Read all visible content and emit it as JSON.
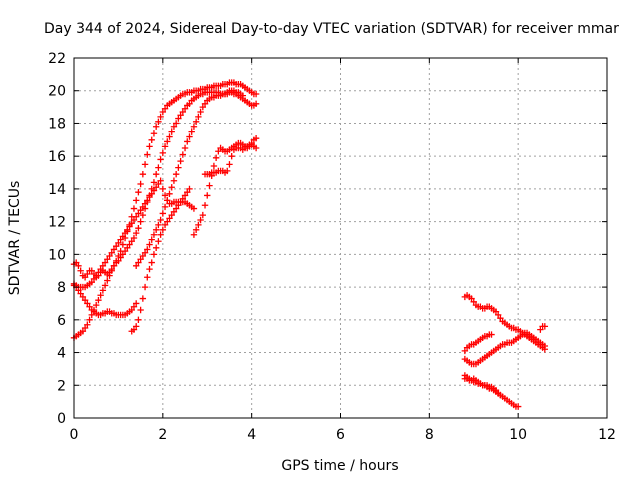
{
  "chart_data": {
    "type": "scatter",
    "title": "Day 344 of 2024, Sidereal Day-to-day VTEC variation (SDTVAR) for receiver mmar",
    "xlabel": "GPS time / hours",
    "ylabel": "SDTVAR / TECUs",
    "xlim": [
      0,
      12
    ],
    "ylim": [
      0,
      22
    ],
    "xticks": [
      0,
      2,
      4,
      6,
      8,
      10,
      12
    ],
    "yticks": [
      0,
      2,
      4,
      6,
      8,
      10,
      12,
      14,
      16,
      18,
      20,
      22
    ],
    "grid": true,
    "marker": "+",
    "color": "#ff0000",
    "series": [
      {
        "x": [
          0.0,
          0.05,
          0.1,
          0.15,
          0.2,
          0.25,
          0.3,
          0.35,
          0.4,
          0.45,
          0.5,
          0.55,
          0.6,
          0.65,
          0.7,
          0.75,
          0.8,
          0.85,
          0.9,
          0.95,
          1.0,
          1.05,
          1.1,
          1.15,
          1.2,
          1.25,
          1.3,
          1.35,
          1.4,
          1.45,
          1.5,
          1.55,
          1.6,
          1.65,
          1.7,
          1.75,
          1.8,
          1.85,
          1.9,
          1.95,
          2.0,
          2.05,
          2.1,
          2.15,
          2.2,
          2.25,
          2.3,
          2.35,
          2.4,
          2.45,
          2.5,
          2.55,
          2.6,
          2.65,
          2.7,
          2.75,
          2.8,
          2.85,
          2.9,
          2.95,
          3.0,
          3.05,
          3.1,
          3.15,
          3.2,
          3.25,
          3.3,
          3.35,
          3.4,
          3.45,
          3.5,
          3.55,
          3.6,
          3.65,
          3.7,
          3.75,
          3.8,
          3.85,
          3.9,
          3.95,
          4.0,
          4.05,
          4.1
        ],
        "y": [
          4.9,
          5.0,
          5.1,
          5.2,
          5.3,
          5.5,
          5.7,
          6.0,
          6.3,
          6.6,
          6.9,
          7.2,
          7.5,
          7.8,
          8.1,
          8.4,
          8.7,
          9.0,
          9.3,
          9.6,
          9.9,
          10.2,
          10.6,
          11.0,
          11.4,
          11.8,
          12.3,
          12.8,
          13.3,
          13.8,
          14.3,
          14.9,
          15.5,
          16.1,
          16.6,
          17.0,
          17.4,
          17.8,
          18.1,
          18.4,
          18.7,
          18.9,
          19.1,
          19.2,
          19.3,
          19.4,
          19.5,
          19.6,
          19.7,
          19.8,
          19.8,
          19.9,
          19.9,
          19.9,
          20.0,
          20.0,
          20.0,
          20.1,
          20.1,
          20.1,
          20.2,
          20.2,
          20.2,
          20.3,
          20.3,
          20.3,
          20.3,
          20.4,
          20.4,
          20.4,
          20.5,
          20.5,
          20.5,
          20.4,
          20.4,
          20.4,
          20.3,
          20.2,
          20.1,
          20.0,
          19.9,
          19.8,
          19.8
        ]
      },
      {
        "x": [
          0.0,
          0.05,
          0.1,
          0.15,
          0.2,
          0.25,
          0.3,
          0.35,
          0.4,
          0.45,
          0.5,
          0.55,
          0.6,
          0.65,
          0.7,
          0.75,
          0.8,
          0.85,
          0.9,
          0.95,
          1.0,
          1.05,
          1.1,
          1.15,
          1.2,
          1.25,
          1.3,
          1.35,
          1.4,
          1.45,
          1.5,
          1.55,
          1.6,
          1.65,
          1.7,
          1.75,
          1.8,
          1.85,
          1.9,
          1.95,
          2.0,
          2.05,
          2.1,
          2.15,
          2.2,
          2.25,
          2.3,
          2.35,
          2.4,
          2.45,
          2.5,
          2.55,
          2.6,
          2.65,
          2.7
        ],
        "y": [
          8.1,
          8.1,
          8.0,
          8.0,
          8.0,
          8.0,
          8.1,
          8.2,
          8.3,
          8.5,
          8.7,
          8.9,
          9.1,
          9.3,
          9.5,
          9.7,
          9.9,
          10.1,
          10.3,
          10.5,
          10.7,
          10.9,
          11.1,
          11.3,
          11.5,
          11.7,
          11.9,
          12.1,
          12.3,
          12.5,
          12.7,
          12.9,
          13.1,
          13.3,
          13.5,
          13.7,
          13.9,
          14.1,
          14.3,
          14.5,
          14.0,
          13.6,
          13.3,
          13.1,
          13.1,
          13.2,
          13.2,
          13.2,
          13.2,
          13.2,
          13.2,
          13.1,
          13.0,
          12.9,
          12.8
        ]
      },
      {
        "x": [
          0.0,
          0.05,
          0.1,
          0.15,
          0.2,
          0.25,
          0.3,
          0.35,
          0.4,
          0.45,
          0.5,
          0.55,
          0.6,
          0.65,
          0.7,
          0.75,
          0.8,
          0.85,
          0.9,
          0.95,
          1.0,
          1.05,
          1.1,
          1.15,
          1.2,
          1.25,
          1.3,
          1.35,
          1.4
        ],
        "y": [
          8.2,
          8.0,
          7.8,
          7.6,
          7.4,
          7.2,
          7.0,
          6.8,
          6.6,
          6.5,
          6.4,
          6.3,
          6.3,
          6.4,
          6.4,
          6.5,
          6.5,
          6.4,
          6.4,
          6.3,
          6.3,
          6.3,
          6.3,
          6.3,
          6.4,
          6.5,
          6.6,
          6.8,
          7.0
        ]
      },
      {
        "x": [
          0.0,
          0.05,
          0.1,
          0.15,
          0.2,
          0.25,
          0.3,
          0.35,
          0.4,
          0.45,
          0.5,
          0.55,
          0.6,
          0.65,
          0.7,
          0.75,
          0.8,
          0.85,
          0.9,
          0.95,
          1.0,
          1.05,
          1.1,
          1.15,
          1.2,
          1.25,
          1.3,
          1.35,
          1.4,
          1.45,
          1.5,
          1.55,
          1.6,
          1.65,
          1.7,
          1.75,
          1.8,
          1.85,
          1.9,
          1.95,
          2.0,
          2.05,
          2.1,
          2.15,
          2.2,
          2.25,
          2.3,
          2.35,
          2.4,
          2.45,
          2.5,
          2.55,
          2.6,
          2.65,
          2.7,
          2.75,
          2.8,
          2.85,
          2.9,
          2.95,
          3.0,
          3.05,
          3.1,
          3.15,
          3.2,
          3.25,
          3.3,
          3.35,
          3.4,
          3.45,
          3.5,
          3.55,
          3.6,
          3.65,
          3.7,
          3.75,
          3.8,
          3.85,
          3.9,
          3.95,
          4.0,
          4.05,
          4.1
        ],
        "y": [
          9.4,
          9.5,
          9.3,
          9.0,
          8.7,
          8.6,
          8.8,
          9.0,
          9.0,
          8.8,
          8.6,
          8.7,
          8.9,
          9.0,
          8.9,
          8.8,
          8.9,
          9.1,
          9.3,
          9.5,
          9.6,
          9.8,
          10.0,
          10.2,
          10.4,
          10.6,
          10.8,
          11.0,
          11.3,
          11.6,
          12.0,
          12.4,
          12.8,
          13.2,
          13.6,
          14.0,
          14.4,
          14.9,
          15.3,
          15.8,
          16.2,
          16.6,
          16.9,
          17.2,
          17.5,
          17.8,
          18.0,
          18.3,
          18.5,
          18.7,
          18.9,
          19.1,
          19.2,
          19.4,
          19.5,
          19.6,
          19.7,
          19.8,
          19.8,
          19.9,
          19.9,
          19.9,
          19.9,
          19.9,
          19.9,
          19.9,
          19.8,
          19.8,
          19.8,
          19.8,
          19.9,
          19.9,
          19.8,
          19.8,
          19.7,
          19.6,
          19.5,
          19.4,
          19.3,
          19.2,
          19.1,
          19.1,
          19.2
        ]
      },
      {
        "x": [
          1.3,
          1.35,
          1.4,
          1.45,
          1.5,
          1.55,
          1.6,
          1.65,
          1.7,
          1.75,
          1.8,
          1.85,
          1.9,
          1.95,
          2.0,
          2.05,
          2.1,
          2.15,
          2.2,
          2.25,
          2.3,
          2.35,
          2.4,
          2.45,
          2.5,
          2.55,
          2.6
        ],
        "y": [
          5.3,
          5.4,
          5.6,
          6.0,
          6.6,
          7.3,
          8.0,
          8.6,
          9.1,
          9.5,
          10.0,
          10.4,
          10.8,
          11.2,
          11.5,
          11.8,
          12.0,
          12.2,
          12.4,
          12.6,
          12.8,
          13.0,
          13.2,
          13.4,
          13.6,
          13.8,
          14.0
        ]
      },
      {
        "x": [
          1.4,
          1.45,
          1.5,
          1.55,
          1.6,
          1.65,
          1.7,
          1.75,
          1.8,
          1.85,
          1.9,
          1.95,
          2.0,
          2.05,
          2.1,
          2.15,
          2.2,
          2.25,
          2.3,
          2.35,
          2.4,
          2.45,
          2.5,
          2.55,
          2.6,
          2.65,
          2.7,
          2.75,
          2.8,
          2.85,
          2.9,
          2.95,
          3.0,
          3.05,
          3.1,
          3.15,
          3.2,
          3.25,
          3.3,
          3.35,
          3.4,
          3.45,
          3.5,
          3.55,
          3.6,
          3.65,
          3.7,
          3.75,
          3.8
        ],
        "y": [
          9.3,
          9.5,
          9.7,
          9.9,
          10.1,
          10.3,
          10.6,
          10.9,
          11.2,
          11.5,
          11.8,
          12.1,
          12.5,
          12.9,
          13.3,
          13.7,
          14.1,
          14.5,
          14.9,
          15.3,
          15.7,
          16.1,
          16.5,
          16.9,
          17.2,
          17.5,
          17.8,
          18.1,
          18.4,
          18.7,
          19.0,
          19.2,
          19.4,
          19.5,
          19.6,
          19.6,
          19.7,
          19.7,
          19.7,
          19.8,
          19.8,
          19.9,
          20.0,
          20.0,
          20.0,
          19.9,
          19.9,
          19.8,
          19.7
        ]
      },
      {
        "x": [
          2.7,
          2.75,
          2.8,
          2.85,
          2.9,
          2.95,
          3.0,
          3.05,
          3.1,
          3.15,
          3.2,
          3.25,
          3.3,
          3.35,
          3.4,
          3.45,
          3.5,
          3.55,
          3.6,
          3.65,
          3.7,
          3.75,
          3.8,
          3.85,
          3.9,
          3.95,
          4.0,
          4.05,
          4.1
        ],
        "y": [
          11.2,
          11.5,
          11.8,
          12.1,
          12.4,
          13.0,
          13.6,
          14.2,
          14.8,
          15.4,
          15.9,
          16.3,
          16.5,
          16.4,
          16.3,
          16.3,
          16.4,
          16.5,
          16.6,
          16.7,
          16.8,
          16.8,
          16.7,
          16.6,
          16.5,
          16.6,
          16.8,
          17.0,
          17.1
        ]
      },
      {
        "x": [
          2.95,
          3.0,
          3.05,
          3.1,
          3.15,
          3.2,
          3.25,
          3.3,
          3.35,
          3.4,
          3.45,
          3.5,
          3.55,
          3.6,
          3.65,
          3.7,
          3.75,
          3.8,
          3.85,
          3.9,
          3.95,
          4.0,
          4.05,
          4.1
        ],
        "y": [
          14.9,
          14.9,
          14.9,
          15.0,
          15.0,
          15.0,
          15.1,
          15.1,
          15.1,
          15.0,
          15.1,
          15.5,
          16.0,
          16.4,
          16.5,
          16.5,
          16.5,
          16.4,
          16.5,
          16.6,
          16.7,
          16.7,
          16.6,
          16.5
        ]
      },
      {
        "x": [
          8.8,
          8.85,
          8.9,
          8.95,
          9.0,
          9.05,
          9.1,
          9.15,
          9.2,
          9.25,
          9.3,
          9.35,
          9.4,
          9.45,
          9.5,
          9.55,
          9.6,
          9.65,
          9.7,
          9.75,
          9.8,
          9.85,
          9.9,
          9.95,
          10.0,
          10.05,
          10.1,
          10.15,
          10.2,
          10.25,
          10.3,
          10.35,
          10.4,
          10.45,
          10.5,
          10.55,
          10.6
        ],
        "y": [
          7.4,
          7.5,
          7.4,
          7.3,
          7.1,
          6.9,
          6.8,
          6.8,
          6.7,
          6.7,
          6.8,
          6.8,
          6.7,
          6.6,
          6.5,
          6.3,
          6.1,
          5.9,
          5.8,
          5.7,
          5.6,
          5.5,
          5.5,
          5.4,
          5.4,
          5.3,
          5.2,
          5.1,
          5.0,
          4.9,
          4.8,
          4.7,
          4.6,
          4.5,
          4.4,
          4.3,
          4.2
        ]
      },
      {
        "x": [
          8.8,
          8.85,
          8.9,
          8.95,
          9.0,
          9.05,
          9.1,
          9.15,
          9.2,
          9.25,
          9.3,
          9.35,
          9.4,
          9.45,
          9.5,
          9.55,
          9.6,
          9.65,
          9.7,
          9.75,
          9.8,
          9.85,
          9.9,
          9.95,
          10.0,
          10.05,
          10.1,
          10.15,
          10.2,
          10.25,
          10.3,
          10.35,
          10.4,
          10.45,
          10.5,
          10.55,
          10.6
        ],
        "y": [
          3.6,
          3.5,
          3.4,
          3.3,
          3.3,
          3.3,
          3.4,
          3.5,
          3.6,
          3.7,
          3.8,
          3.9,
          4.0,
          4.1,
          4.2,
          4.3,
          4.4,
          4.5,
          4.5,
          4.6,
          4.6,
          4.6,
          4.7,
          4.8,
          4.9,
          5.0,
          5.1,
          5.2,
          5.2,
          5.1,
          5.0,
          4.9,
          4.8,
          4.7,
          4.6,
          4.5,
          4.4
        ]
      },
      {
        "x": [
          8.8,
          8.85,
          8.9,
          8.95,
          9.0,
          9.05,
          9.1,
          9.15,
          9.2,
          9.25,
          9.3,
          9.35,
          9.4
        ],
        "y": [
          4.1,
          4.3,
          4.4,
          4.5,
          4.5,
          4.6,
          4.7,
          4.8,
          4.9,
          5.0,
          5.0,
          5.1,
          5.1
        ]
      },
      {
        "x": [
          8.8,
          8.85,
          8.9,
          8.95,
          9.0,
          9.05,
          9.1,
          9.15,
          9.2,
          9.25,
          9.3,
          9.35,
          9.4,
          9.45,
          9.5,
          9.55,
          9.6,
          9.65,
          9.7,
          9.75,
          9.8,
          9.85,
          9.9,
          9.95,
          10.0
        ],
        "y": [
          2.6,
          2.5,
          2.4,
          2.3,
          2.4,
          2.3,
          2.2,
          2.1,
          2.0,
          2.0,
          2.0,
          1.9,
          1.9,
          1.8,
          1.7,
          1.5,
          1.4,
          1.3,
          1.2,
          1.1,
          1.0,
          0.9,
          0.8,
          0.7,
          0.7
        ]
      },
      {
        "x": [
          8.8,
          8.85,
          8.9,
          8.95,
          9.0,
          9.05,
          9.1,
          9.15,
          9.2,
          9.25,
          9.3,
          9.35,
          9.4,
          9.45,
          9.5,
          9.55,
          9.6
        ],
        "y": [
          2.4,
          2.4,
          2.3,
          2.3,
          2.2,
          2.2,
          2.1,
          2.1,
          2.0,
          2.0,
          1.9,
          1.8,
          1.8,
          1.7,
          1.6,
          1.5,
          1.4
        ]
      },
      {
        "x": [
          10.5,
          10.55,
          10.6
        ],
        "y": [
          5.4,
          5.6,
          5.6
        ]
      }
    ]
  }
}
